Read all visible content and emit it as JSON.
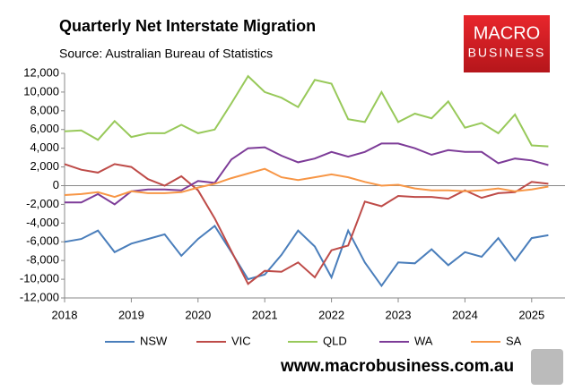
{
  "chart_data": {
    "type": "line",
    "title": "Quarterly Net Interstate Migration",
    "subtitle": "Source: Australian Bureau of Statistics",
    "x": [
      2018,
      2018.25,
      2018.5,
      2018.75,
      2019,
      2019.25,
      2019.5,
      2019.75,
      2020,
      2020.25,
      2020.5,
      2020.75,
      2021,
      2021.25,
      2021.5,
      2021.75,
      2022,
      2022.25,
      2022.5,
      2022.75,
      2023,
      2023.25,
      2023.5,
      2023.75,
      2024,
      2024.25,
      2024.5,
      2024.75,
      2025,
      2025.25
    ],
    "xlim": [
      2018,
      2025.5
    ],
    "xticks": [
      2018,
      2019,
      2020,
      2021,
      2022,
      2023,
      2024,
      2025
    ],
    "ylim": [
      -12000,
      12000
    ],
    "yticks": [
      {
        "value": -12000,
        "label": "-12,000"
      },
      {
        "value": -10000,
        "label": "-10,000"
      },
      {
        "value": -8000,
        "label": "-8,000"
      },
      {
        "value": -6000,
        "label": "-6,000"
      },
      {
        "value": -4000,
        "label": "-4,000"
      },
      {
        "value": -2000,
        "label": "-2,000"
      },
      0,
      {
        "value": 2000,
        "label": "2,000"
      },
      {
        "value": 4000,
        "label": "4,000"
      },
      {
        "value": 6000,
        "label": "6,000"
      },
      {
        "value": 8000,
        "label": "8,000"
      },
      {
        "value": 10000,
        "label": "10,000"
      },
      {
        "value": 12000,
        "label": "12,000"
      }
    ],
    "grid": false,
    "legend": "bottom",
    "series": [
      {
        "name": "NSW",
        "color": "#4a7ebb",
        "values": [
          -6000,
          -5700,
          -4800,
          -7100,
          -6200,
          -5700,
          -5200,
          -7500,
          -5700,
          -4300,
          -7100,
          -10000,
          -9500,
          -7400,
          -4800,
          -6500,
          -9800,
          -4800,
          -8200,
          -10700,
          -8200,
          -8300,
          -6800,
          -8500,
          -7100,
          -7600,
          -5600,
          -8000,
          -5600,
          -5300
        ]
      },
      {
        "name": "VIC",
        "color": "#be4b48",
        "values": [
          2300,
          1700,
          1400,
          2300,
          2000,
          700,
          0,
          1000,
          -500,
          -3500,
          -7000,
          -10500,
          -9100,
          -9200,
          -8200,
          -9800,
          -6900,
          -6400,
          -1700,
          -2200,
          -1100,
          -1200,
          -1200,
          -1400,
          -500,
          -1300,
          -800,
          -700,
          400,
          200
        ]
      },
      {
        "name": "QLD",
        "color": "#98c95a",
        "values": [
          5800,
          5900,
          4900,
          6900,
          5200,
          5600,
          5600,
          6500,
          5600,
          6000,
          8800,
          11700,
          10000,
          9400,
          8400,
          11300,
          10900,
          7100,
          6800,
          10000,
          6800,
          7700,
          7200,
          9000,
          6200,
          6700,
          5600,
          7600,
          4300,
          4200
        ]
      },
      {
        "name": "WA",
        "color": "#7d3c98",
        "values": [
          -1800,
          -1800,
          -900,
          -2000,
          -600,
          -400,
          -400,
          -500,
          500,
          300,
          2800,
          4000,
          4100,
          3200,
          2500,
          2900,
          3600,
          3100,
          3600,
          4500,
          4500,
          4000,
          3300,
          3800,
          3600,
          3600,
          2400,
          2900,
          2700,
          2200
        ]
      },
      {
        "name": "SA",
        "color": "#f79646",
        "values": [
          -1000,
          -900,
          -700,
          -1200,
          -600,
          -800,
          -800,
          -700,
          -200,
          200,
          800,
          1300,
          1800,
          900,
          600,
          900,
          1200,
          900,
          400,
          0,
          100,
          -300,
          -500,
          -500,
          -600,
          -500,
          -300,
          -600,
          -400,
          -100
        ]
      }
    ]
  },
  "branding": {
    "logo_top": "MACRO",
    "logo_bottom": "BUSINESS",
    "website": "www.macrobusiness.com.au"
  }
}
